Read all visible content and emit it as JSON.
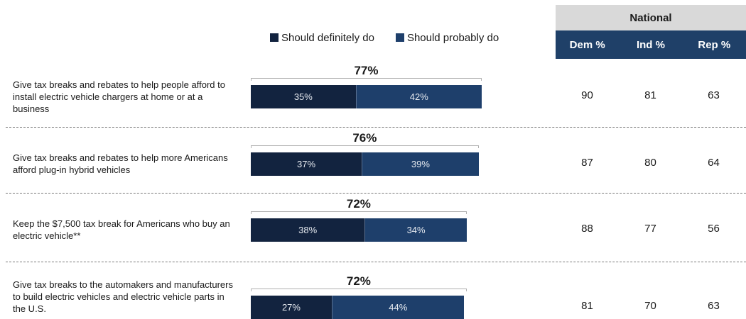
{
  "legend": {
    "definitely": "Should definitely do",
    "probably": "Should probably do"
  },
  "national": {
    "title": "National",
    "columns": [
      "Dem %",
      "Ind %",
      "Rep %"
    ]
  },
  "colors": {
    "definitely": "#12233f",
    "probably": "#1e3f6b",
    "header": "#1f4068",
    "header_gray": "#d9d9d9"
  },
  "chart_data": {
    "type": "bar",
    "stacked": true,
    "orientation": "horizontal",
    "categories": [
      "Give tax breaks and rebates to help people afford to install electric vehicle chargers at home or at a business",
      "Give tax breaks and rebates to help more Americans afford plug-in hybrid vehicles",
      "Keep the $7,500 tax break for Americans who buy an electric vehicle**",
      "Give tax breaks to the automakers and manufacturers to build electric vehicles and electric vehicle parts in the U.S."
    ],
    "series": [
      {
        "name": "Should definitely do",
        "values": [
          35,
          37,
          38,
          27
        ]
      },
      {
        "name": "Should probably do",
        "values": [
          42,
          39,
          34,
          44
        ]
      }
    ],
    "totals": [
      77,
      76,
      72,
      72
    ],
    "value_labels": {
      "definitely": [
        "35%",
        "37%",
        "38%",
        "27%"
      ],
      "probably": [
        "42%",
        "39%",
        "34%",
        "44%"
      ],
      "totals": [
        "77%",
        "76%",
        "72%",
        "72%"
      ]
    },
    "table": {
      "columns": [
        "Dem %",
        "Ind %",
        "Rep %"
      ],
      "rows": [
        [
          "90",
          "81",
          "63"
        ],
        [
          "87",
          "80",
          "64"
        ],
        [
          "88",
          "77",
          "56"
        ],
        [
          "81",
          "70",
          "63"
        ]
      ]
    },
    "legend_position": "top",
    "grid": false
  }
}
